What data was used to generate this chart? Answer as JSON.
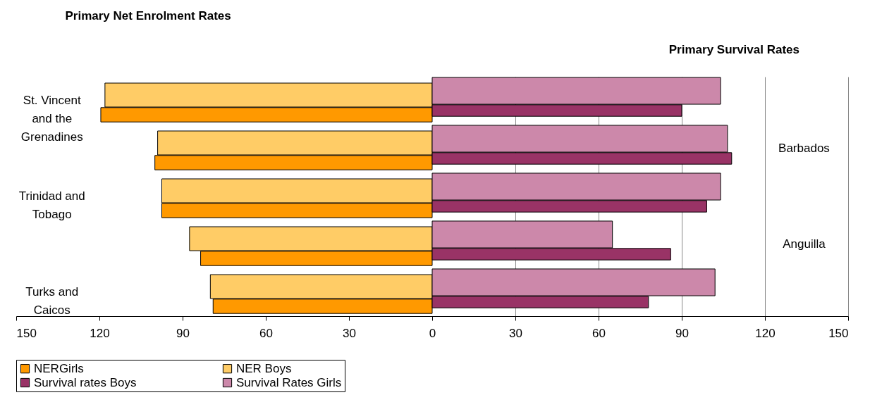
{
  "chart_data": {
    "type": "bar",
    "orientation": "horizontal",
    "title": "Primary Net Enrolment Rates",
    "annotations": [
      "Primary Survival Rates"
    ],
    "categories": [
      "St. Vincent and the Grenadines",
      "Barbados",
      "Trinidad and Tobago",
      "Anguilla",
      "Turks and Caicos"
    ],
    "series": [
      {
        "name": "NERGirls",
        "color": "#ff9900",
        "values": [
          -119.5,
          -100,
          -97.5,
          -83.5,
          -79
        ]
      },
      {
        "name": "NER Boys",
        "color": "#ffcc66",
        "values": [
          -118,
          -99,
          -97.5,
          -87.5,
          -80
        ]
      },
      {
        "name": "Survival rates Boys",
        "color": "#993366",
        "values": [
          90,
          108,
          99,
          86,
          78
        ]
      },
      {
        "name": "Survival Rates Girls",
        "color": "#cc88aa",
        "values": [
          104,
          106.5,
          104,
          65,
          102
        ]
      }
    ],
    "xlim": [
      -150,
      150
    ],
    "xticks": [
      {
        "value": -150,
        "label": "150"
      },
      {
        "value": -120,
        "label": "120"
      },
      {
        "value": -90,
        "label": "90"
      },
      {
        "value": -60,
        "label": "60"
      },
      {
        "value": -30,
        "label": "30"
      },
      0,
      30,
      60,
      90,
      120,
      150
    ],
    "grid": "x",
    "legend": "bottom"
  }
}
